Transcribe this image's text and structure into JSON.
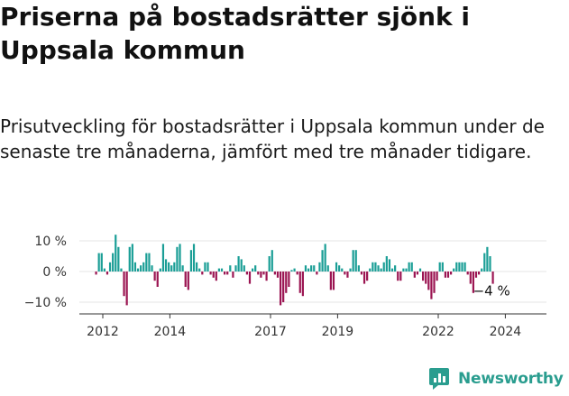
{
  "title": "Priserna på bostadsrätter sjönk i Uppsala kommun",
  "subtitle": "Prisutveckling för bostadsrätter i Uppsala kommun under de senaste tre månaderna, jämfört med tre månader tidigare.",
  "brand": "Newsworthy",
  "colors": {
    "positive": "#1a9e96",
    "negative": "#9b1552",
    "grid": "#e5e5e5",
    "axis": "#333333",
    "brand": "#2a9d8f"
  },
  "chart_data": {
    "type": "bar",
    "ylim": [
      -14,
      14
    ],
    "yticks": [
      10,
      0,
      -10
    ],
    "ytick_labels": [
      "10 %",
      "0 %",
      "−10 %"
    ],
    "x_start": 2011.8,
    "x_step": 0.0833,
    "xticks": [
      2012,
      2014,
      2017,
      2019,
      2022,
      2024
    ],
    "xtick_labels": [
      "2012",
      "2014",
      "2017",
      "2019",
      "2022",
      "2024"
    ],
    "end_label": "−4 %",
    "values": [
      -1,
      6,
      6,
      1,
      -1,
      3,
      6,
      12,
      8,
      1,
      -8,
      -11,
      8,
      9,
      3,
      1,
      2,
      3,
      6,
      6,
      2,
      -3,
      -5,
      1,
      9,
      4,
      3,
      2,
      3,
      8,
      9,
      2,
      -5,
      -6,
      7,
      9,
      3,
      1,
      -1,
      3,
      3,
      -1,
      -2,
      -3,
      1,
      1,
      -1,
      -1,
      2,
      -2,
      2,
      5,
      4,
      2,
      -1,
      -4,
      1,
      2,
      -1,
      -2,
      -1,
      -3,
      5,
      7,
      -1,
      -2,
      -11,
      -10,
      -7,
      -5,
      0.5,
      1,
      -1,
      -7,
      -8,
      2,
      1,
      2,
      2,
      -1,
      3,
      7,
      9,
      2,
      -6,
      -6,
      3,
      2,
      1,
      -1,
      -2,
      1,
      7,
      7,
      2,
      -1,
      -4,
      -3,
      1,
      3,
      3,
      2,
      1,
      3,
      5,
      4,
      1,
      2,
      -3,
      -3,
      1,
      1,
      3,
      3,
      -2,
      -1,
      1,
      -3,
      -4,
      -6,
      -9,
      -7,
      -3,
      3,
      3,
      -2,
      -2,
      -1,
      1,
      3,
      3,
      3,
      3,
      -1,
      -4,
      -7,
      -2,
      -1,
      1,
      6,
      8,
      5,
      -4
    ]
  }
}
